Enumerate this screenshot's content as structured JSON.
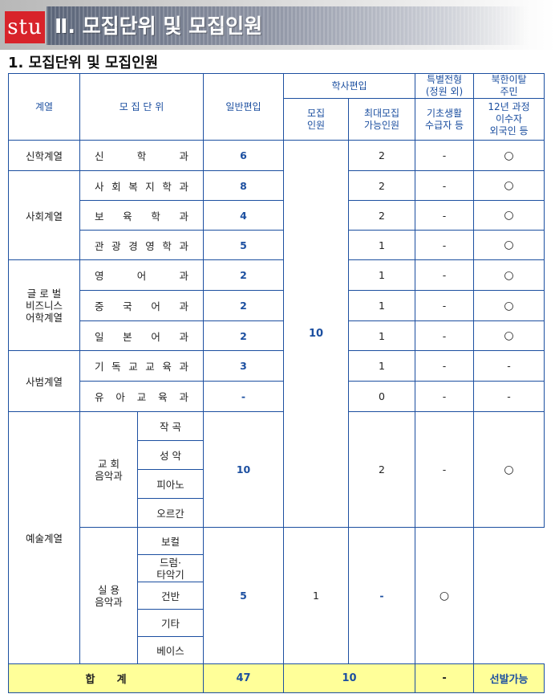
{
  "banner": {
    "logo_text": "stu",
    "title": "Ⅱ. 모집단위 및 모집인원"
  },
  "section": {
    "title": "1. 모집단위 및 모집인원"
  },
  "headers": {
    "division": "계열",
    "unit": "모 집 단 위",
    "general_transfer": "일반편입",
    "bachelor_transfer": "학사편입",
    "bachelor_quota": "모집\n인원",
    "bachelor_max": "최대모집\n가능인원",
    "special": "특별전형\n(정원 외)",
    "special_sub": "기초생활\n수급자 등",
    "defector": "북한이탈\n주민",
    "defector_sub": "12년 과정\n이수자\n외국인 등"
  },
  "rows": [
    {
      "division": "신학계열",
      "unit": "신 학 과",
      "general": "6",
      "max": "2",
      "special": "-",
      "defector": "○"
    },
    {
      "division": "사회계열",
      "unit": "사 회 복 지 학 과",
      "general": "8",
      "max": "2",
      "special": "-",
      "defector": "○"
    },
    {
      "unit": "보 육 학 과",
      "general": "4",
      "max": "2",
      "special": "-",
      "defector": "○"
    },
    {
      "unit": "관 광 경 영 학 과",
      "general": "5",
      "max": "1",
      "special": "-",
      "defector": "○"
    },
    {
      "division": "글 로 벌\n비즈니스\n어학계열",
      "unit": "영 어 과",
      "general": "2",
      "max": "1",
      "special": "-",
      "defector": "○"
    },
    {
      "unit": "중 국 어 과",
      "general": "2",
      "max": "1",
      "special": "-",
      "defector": "○"
    },
    {
      "unit": "일 본 어 과",
      "general": "2",
      "max": "1",
      "special": "-",
      "defector": "○"
    },
    {
      "division": "사범계열",
      "unit": "기 독 교 교 육 과",
      "general": "3",
      "max": "1",
      "special": "-",
      "defector": "-"
    },
    {
      "unit": "유 아 교 육 과",
      "general": "-",
      "max": "0",
      "special": "-",
      "defector": "-"
    }
  ],
  "bachelor_quota_total": "10",
  "arts": {
    "division": "예술계열",
    "church_music": {
      "name": "교  회\n음악과",
      "majors": [
        "작  곡",
        "성  악",
        "피아노",
        "오르간"
      ],
      "general": "10",
      "max": "2",
      "special": "-",
      "defector": "○"
    },
    "practical_music": {
      "name": "실  용\n음악과",
      "majors": [
        "보컬",
        "드럼·\n타악기",
        "건반",
        "기타",
        "베이스"
      ],
      "general": "5",
      "max": "1",
      "special": "-",
      "defector": "○"
    }
  },
  "total": {
    "label": "합      계",
    "general": "47",
    "bachelor": "10",
    "special": "-",
    "defector": "선발가능"
  }
}
